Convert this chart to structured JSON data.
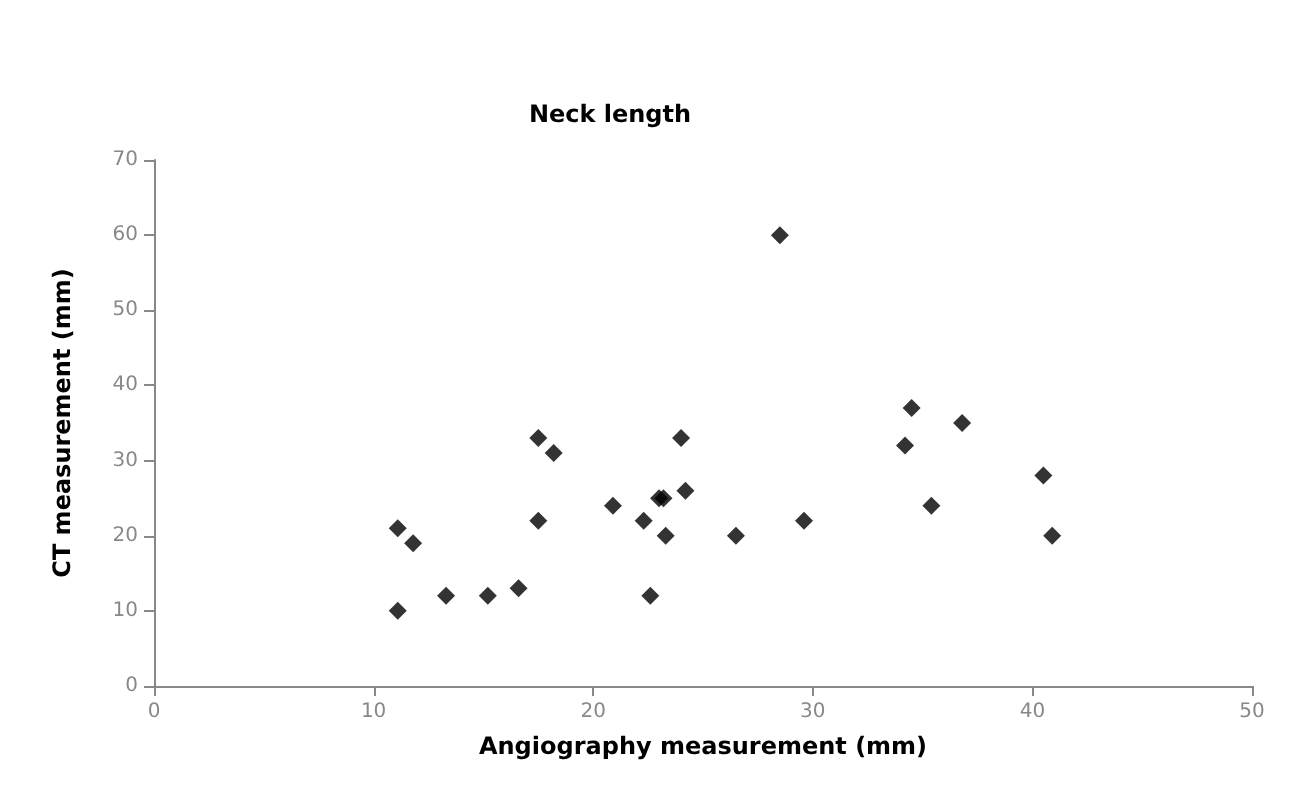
{
  "chart_data": {
    "type": "scatter",
    "title": "Neck length",
    "xlabel": "Angiography measurement (mm)",
    "ylabel": "CT measurement (mm)",
    "x": [
      11.1,
      11.1,
      11.8,
      13.3,
      15.2,
      16.6,
      17.5,
      17.5,
      18.2,
      20.9,
      22.3,
      22.6,
      23.0,
      23.2,
      23.3,
      24.0,
      24.2,
      26.5,
      28.5,
      29.6,
      34.2,
      34.5,
      35.4,
      36.8,
      40.5,
      40.9
    ],
    "values": [
      21,
      10,
      19,
      12,
      12,
      13,
      33,
      22,
      31,
      24,
      22,
      12,
      25,
      25,
      20,
      33,
      26,
      20,
      60,
      22,
      32,
      37,
      24,
      35,
      28,
      20
    ],
    "color": "#000000",
    "marker": "diamond",
    "grid": false,
    "xlim": [
      0,
      50
    ],
    "xticks": [
      0,
      10,
      20,
      30,
      40,
      50
    ],
    "ylim": [
      0,
      70
    ],
    "yticks": [
      0,
      10,
      20,
      30,
      40,
      50,
      60,
      70
    ]
  }
}
